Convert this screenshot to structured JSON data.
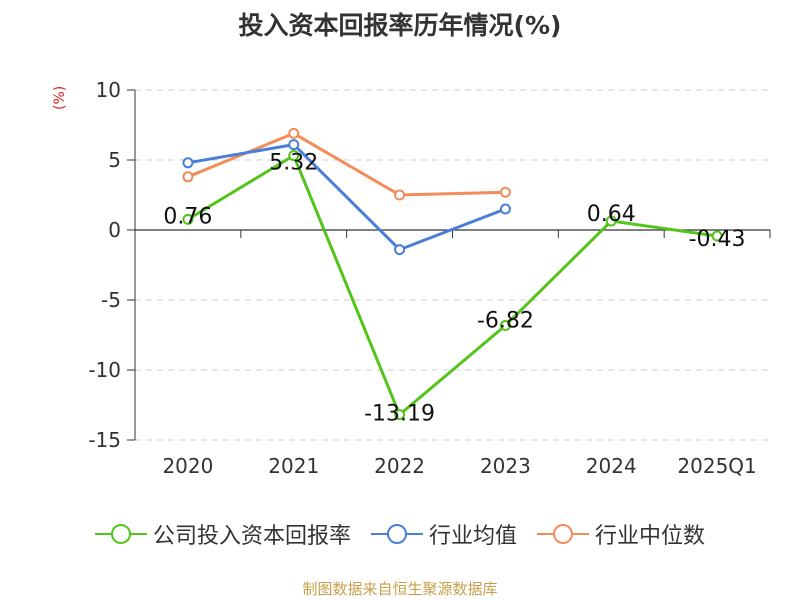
{
  "chart_data": {
    "type": "line",
    "title": "投入资本回报率历年情况(%)",
    "ylabel": "(%)",
    "categories": [
      "2020",
      "2021",
      "2022",
      "2023",
      "2024",
      "2025Q1"
    ],
    "ylim": [
      -15,
      10
    ],
    "yticks": [
      10,
      5,
      0,
      -5,
      -10,
      -15
    ],
    "grid": true,
    "legend_position": "bottom",
    "series": [
      {
        "name": "公司投入资本回报率",
        "color": "#52c41a",
        "values": [
          0.76,
          5.32,
          -13.19,
          -6.82,
          0.64,
          -0.43
        ],
        "labels": [
          "0.76",
          "5.32",
          "-13.19",
          "-6.82",
          "0.64",
          "-0.43"
        ]
      },
      {
        "name": "行业均值",
        "color": "#4a7fd9",
        "values": [
          4.8,
          6.1,
          -1.4,
          1.5,
          null,
          null
        ]
      },
      {
        "name": "行业中位数",
        "color": "#f28c5a",
        "values": [
          3.8,
          6.9,
          2.5,
          2.7,
          null,
          null
        ]
      }
    ]
  },
  "source": "制图数据来自恒生聚源数据库"
}
